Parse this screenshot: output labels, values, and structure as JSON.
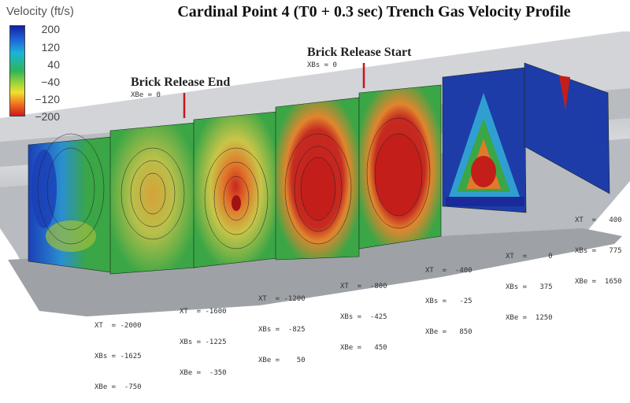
{
  "title": "Cardinal Point 4 (T0 + 0.3 sec) Trench Gas Velocity Profile",
  "legend": {
    "title": "Velocity (ft/s)",
    "ticks": [
      "200",
      "120",
      "40",
      "−40",
      "−120",
      "−200"
    ]
  },
  "annotations": {
    "release_end": {
      "label": "Brick Release End",
      "sub": "XBe = 0"
    },
    "release_start": {
      "label": "Brick Release Start",
      "sub": "XBs = 0"
    }
  },
  "sections": [
    {
      "xt": "XT  = -2000",
      "xbs": "XBs = -1625",
      "xbe": "XBe =  -750"
    },
    {
      "xt": "XT  = -1600",
      "xbs": "XBs = -1225",
      "xbe": "XBe =  -350"
    },
    {
      "xt": "XT  = -1200",
      "xbs": "XBs =  -825",
      "xbe": "XBe =    50"
    },
    {
      "xt": "XT  =  -800",
      "xbs": "XBs =  -425",
      "xbe": "XBe =   450"
    },
    {
      "xt": "XT  =  -400",
      "xbs": "XBs =   -25",
      "xbe": "XBe =   850"
    },
    {
      "xt": "XT  =     0",
      "xbs": "XBs =   375",
      "xbe": "XBe =  1250"
    },
    {
      "xt": "XT  =   400",
      "xbs": "XBs =   775",
      "xbe": "XBe =  1650"
    }
  ]
}
